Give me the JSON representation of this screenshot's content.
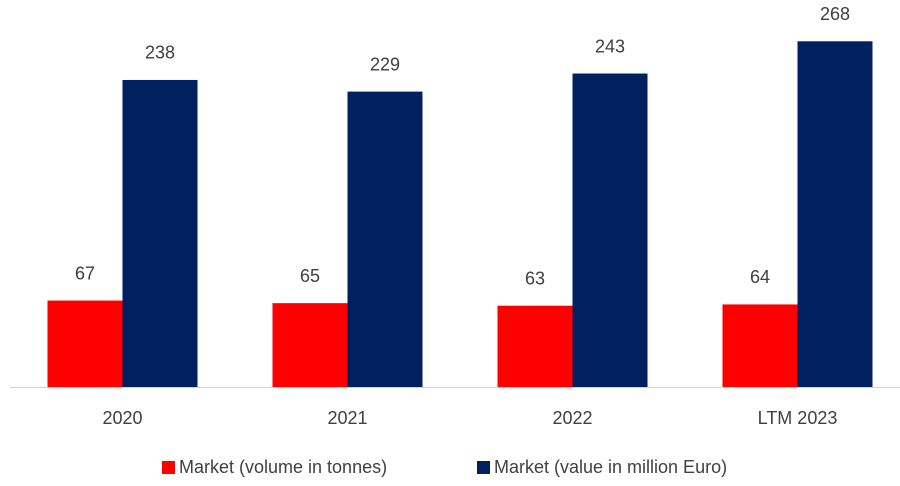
{
  "chart_data": {
    "type": "bar",
    "categories": [
      "2020",
      "2021",
      "2022",
      "LTM 2023"
    ],
    "series": [
      {
        "name": "Market (volume in tonnes)",
        "color": "#ff0000",
        "values": [
          67,
          65,
          63,
          64
        ]
      },
      {
        "name": "Market (value in million Euro)",
        "color": "#002060",
        "values": [
          238,
          229,
          243,
          268
        ]
      }
    ],
    "ylim": [
      0,
      300
    ]
  }
}
